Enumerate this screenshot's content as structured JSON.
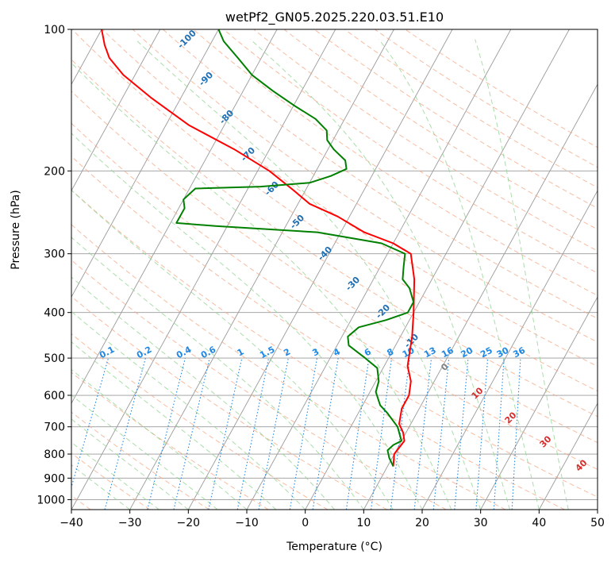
{
  "chart_data": {
    "type": "line",
    "title": "wetPf2_GN05.2025.220.03.51.E10",
    "xlabel": "Temperature (°C)",
    "ylabel": "Pressure (hPa)",
    "xlim": [
      -40,
      50
    ],
    "ylim": [
      1050,
      100
    ],
    "y_scale": "log",
    "grid": true,
    "x_ticks": [
      -40,
      -30,
      -20,
      -10,
      0,
      10,
      20,
      30,
      40,
      50
    ],
    "y_ticks": [
      100,
      200,
      300,
      400,
      500,
      600,
      700,
      800,
      900,
      1000
    ],
    "series": [
      {
        "role": "temperature",
        "color": "#ff0000",
        "points": [
          {
            "T": 11.0,
            "p": 850
          },
          {
            "T": 10.0,
            "p": 800
          },
          {
            "T": 10.5,
            "p": 750
          },
          {
            "T": 9.5,
            "p": 720
          },
          {
            "T": 8.0,
            "p": 690
          },
          {
            "T": 7.0,
            "p": 640
          },
          {
            "T": 7.0,
            "p": 600
          },
          {
            "T": 6.0,
            "p": 560
          },
          {
            "T": 4.0,
            "p": 520
          },
          {
            "T": 2.0,
            "p": 450
          },
          {
            "T": 0.0,
            "p": 400
          },
          {
            "T": -3.0,
            "p": 340
          },
          {
            "T": -6.0,
            "p": 300
          },
          {
            "T": -10.0,
            "p": 285
          },
          {
            "T": -16.0,
            "p": 270
          },
          {
            "T": -22.0,
            "p": 250
          },
          {
            "T": -28.0,
            "p": 235
          },
          {
            "T": -32.0,
            "p": 220
          },
          {
            "T": -38.0,
            "p": 200
          },
          {
            "T": -46.0,
            "p": 180
          },
          {
            "T": -56.0,
            "p": 160
          },
          {
            "T": -65.0,
            "p": 140
          },
          {
            "T": -72.0,
            "p": 125
          },
          {
            "T": -76.0,
            "p": 115
          },
          {
            "T": -78.0,
            "p": 108
          },
          {
            "T": -80.0,
            "p": 100
          }
        ]
      },
      {
        "role": "dewpoint",
        "color": "#008000",
        "points": [
          {
            "T": 11.0,
            "p": 850
          },
          {
            "T": 9.5,
            "p": 815
          },
          {
            "T": 8.5,
            "p": 785
          },
          {
            "T": 9.0,
            "p": 765
          },
          {
            "T": 10.0,
            "p": 750
          },
          {
            "T": 8.0,
            "p": 700
          },
          {
            "T": 5.0,
            "p": 655
          },
          {
            "T": 3.0,
            "p": 630
          },
          {
            "T": 1.0,
            "p": 590
          },
          {
            "T": 0.5,
            "p": 560
          },
          {
            "T": -1.0,
            "p": 525
          },
          {
            "T": -4.0,
            "p": 500
          },
          {
            "T": -8.0,
            "p": 470
          },
          {
            "T": -9.0,
            "p": 450
          },
          {
            "T": -8.0,
            "p": 430
          },
          {
            "T": -4.0,
            "p": 415
          },
          {
            "T": -1.0,
            "p": 400
          },
          {
            "T": -1.0,
            "p": 380
          },
          {
            "T": -3.0,
            "p": 355
          },
          {
            "T": -5.0,
            "p": 340
          },
          {
            "T": -6.0,
            "p": 320
          },
          {
            "T": -7.0,
            "p": 300
          },
          {
            "T": -12.0,
            "p": 285
          },
          {
            "T": -24.0,
            "p": 270
          },
          {
            "T": -42.0,
            "p": 262
          },
          {
            "T": -49.0,
            "p": 258
          },
          {
            "T": -49.0,
            "p": 240
          },
          {
            "T": -50.0,
            "p": 230
          },
          {
            "T": -49.0,
            "p": 218
          },
          {
            "T": -38.0,
            "p": 216
          },
          {
            "T": -30.0,
            "p": 212
          },
          {
            "T": -27.0,
            "p": 205
          },
          {
            "T": -25.0,
            "p": 198
          },
          {
            "T": -26.0,
            "p": 190
          },
          {
            "T": -29.0,
            "p": 180
          },
          {
            "T": -31.0,
            "p": 172
          },
          {
            "T": -32.0,
            "p": 164
          },
          {
            "T": -35.0,
            "p": 155
          },
          {
            "T": -40.0,
            "p": 145
          },
          {
            "T": -45.0,
            "p": 135
          },
          {
            "T": -50.0,
            "p": 125
          },
          {
            "T": -54.0,
            "p": 115
          },
          {
            "T": -58.0,
            "p": 106
          },
          {
            "T": -60.0,
            "p": 100
          }
        ]
      }
    ],
    "mixing_ratio_labels": [
      "0.1",
      "0.2",
      "0.4",
      "0.6",
      "1",
      "1.5",
      "2",
      "3",
      "4",
      "6",
      "8",
      "10",
      "13",
      "16",
      "20",
      "25",
      "30",
      "36"
    ],
    "dry_adiabat_labels": [
      "-100",
      "-90",
      "-80",
      "-70",
      "-60",
      "-50",
      "-40",
      "-30",
      "-20",
      "-10"
    ],
    "moist_adiabat_labels": [
      "0",
      "10",
      "20",
      "30",
      "40"
    ],
    "colors": {
      "temperature": "#ff0000",
      "dewpoint": "#008000",
      "mixing_ratio": "#1e88e5",
      "dry_adiabat_label": "#1f6fb4",
      "moist_adiabat_label": "#d32f2f",
      "zero_label": "#808080",
      "dry_adiabat_line": "#f4a582",
      "moist_adiabat_line": "#8fd18f",
      "isotherm_line": "#9a9a9a",
      "isobar_line": "#9a9a9a"
    }
  }
}
